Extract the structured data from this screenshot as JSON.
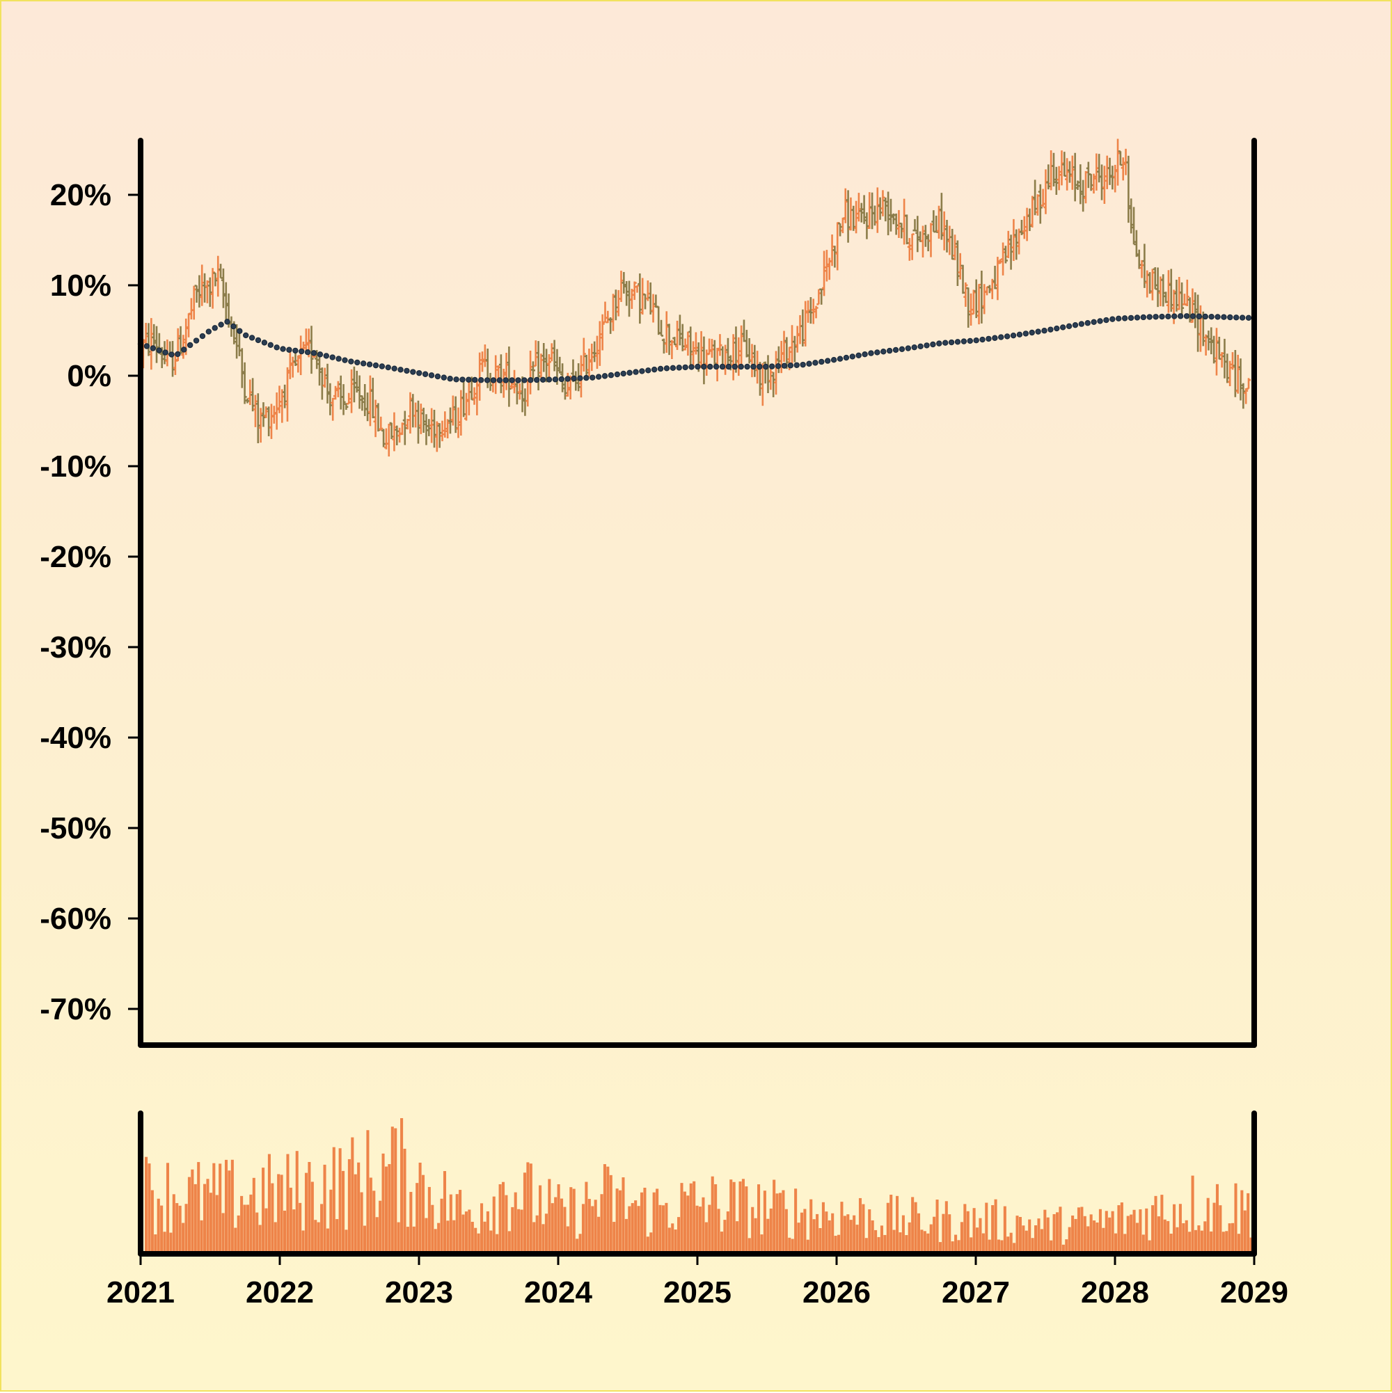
{
  "chart_data": [
    {
      "type": "ohlc",
      "title": "",
      "xlabel": "",
      "ylabel": "",
      "y_tick_labels": [
        "20%",
        "10%",
        "0%",
        "-10%",
        "-20%",
        "-30%",
        "-40%",
        "-50%",
        "-60%",
        "-70%"
      ],
      "y_tick_values": [
        20,
        10,
        0,
        -10,
        -20,
        -30,
        -40,
        -50,
        -60,
        -70
      ],
      "ylim": [
        -74,
        26
      ],
      "xlim": [
        2021,
        2029
      ],
      "grid": false,
      "colors": {
        "up": "#ee8449",
        "down": "#8c7d4a",
        "moving_average": "#1b2a3a"
      },
      "price_path": [
        [
          2021.0,
          3
        ],
        [
          2021.1,
          4
        ],
        [
          2021.2,
          1
        ],
        [
          2021.3,
          4
        ],
        [
          2021.4,
          9
        ],
        [
          2021.5,
          10
        ],
        [
          2021.55,
          11
        ],
        [
          2021.65,
          6
        ],
        [
          2021.75,
          -1
        ],
        [
          2021.85,
          -5
        ],
        [
          2021.95,
          -4
        ],
        [
          2022.05,
          -1
        ],
        [
          2022.15,
          2
        ],
        [
          2022.25,
          3
        ],
        [
          2022.35,
          -2
        ],
        [
          2022.45,
          -3
        ],
        [
          2022.55,
          -2
        ],
        [
          2022.65,
          -3
        ],
        [
          2022.75,
          -7
        ],
        [
          2022.85,
          -6
        ],
        [
          2022.95,
          -3
        ],
        [
          2023.05,
          -6
        ],
        [
          2023.15,
          -5
        ],
        [
          2023.25,
          -5
        ],
        [
          2023.35,
          -2
        ],
        [
          2023.45,
          1
        ],
        [
          2023.55,
          0
        ],
        [
          2023.65,
          0
        ],
        [
          2023.75,
          -2
        ],
        [
          2023.85,
          1
        ],
        [
          2023.95,
          2
        ],
        [
          2024.05,
          -2
        ],
        [
          2024.15,
          0
        ],
        [
          2024.25,
          3
        ],
        [
          2024.35,
          6
        ],
        [
          2024.45,
          10
        ],
        [
          2024.55,
          9
        ],
        [
          2024.65,
          8
        ],
        [
          2024.75,
          5
        ],
        [
          2024.85,
          4
        ],
        [
          2024.95,
          3
        ],
        [
          2025.05,
          2
        ],
        [
          2025.15,
          2
        ],
        [
          2025.25,
          3
        ],
        [
          2025.35,
          3
        ],
        [
          2025.45,
          0
        ],
        [
          2025.55,
          1
        ],
        [
          2025.65,
          3
        ],
        [
          2025.75,
          5
        ],
        [
          2025.85,
          8
        ],
        [
          2025.95,
          13
        ],
        [
          2026.05,
          18
        ],
        [
          2026.15,
          17
        ],
        [
          2026.25,
          18
        ],
        [
          2026.35,
          19
        ],
        [
          2026.45,
          17
        ],
        [
          2026.55,
          15
        ],
        [
          2026.65,
          16
        ],
        [
          2026.75,
          17
        ],
        [
          2026.85,
          13
        ],
        [
          2026.95,
          8
        ],
        [
          2027.05,
          9
        ],
        [
          2027.15,
          11
        ],
        [
          2027.25,
          14
        ],
        [
          2027.35,
          17
        ],
        [
          2027.45,
          19
        ],
        [
          2027.55,
          23
        ],
        [
          2027.65,
          22
        ],
        [
          2027.75,
          21
        ],
        [
          2027.85,
          22
        ],
        [
          2027.95,
          22
        ],
        [
          2028.05,
          24
        ],
        [
          2028.09,
          25
        ],
        [
          2028.1,
          17
        ],
        [
          2028.2,
          11
        ],
        [
          2028.3,
          10
        ],
        [
          2028.4,
          9
        ],
        [
          2028.5,
          8
        ],
        [
          2028.6,
          6
        ],
        [
          2028.7,
          3
        ],
        [
          2028.8,
          1
        ],
        [
          2028.9,
          -1
        ],
        [
          2028.95,
          0
        ]
      ],
      "moving_average": [
        [
          2021.0,
          3.5
        ],
        [
          2021.25,
          2.2
        ],
        [
          2021.5,
          5.0
        ],
        [
          2021.62,
          6.0
        ],
        [
          2021.75,
          4.5
        ],
        [
          2022.0,
          3.0
        ],
        [
          2022.25,
          2.5
        ],
        [
          2022.5,
          1.6
        ],
        [
          2022.75,
          1.0
        ],
        [
          2023.0,
          0.3
        ],
        [
          2023.25,
          -0.4
        ],
        [
          2023.5,
          -0.5
        ],
        [
          2023.75,
          -0.5
        ],
        [
          2024.0,
          -0.4
        ],
        [
          2024.25,
          -0.2
        ],
        [
          2024.5,
          0.3
        ],
        [
          2024.75,
          0.8
        ],
        [
          2025.0,
          1.0
        ],
        [
          2025.25,
          1.0
        ],
        [
          2025.5,
          1.0
        ],
        [
          2025.75,
          1.2
        ],
        [
          2026.0,
          1.8
        ],
        [
          2026.25,
          2.5
        ],
        [
          2026.5,
          3.0
        ],
        [
          2026.75,
          3.6
        ],
        [
          2027.0,
          3.9
        ],
        [
          2027.25,
          4.4
        ],
        [
          2027.5,
          5.0
        ],
        [
          2027.75,
          5.7
        ],
        [
          2028.0,
          6.3
        ],
        [
          2028.25,
          6.5
        ],
        [
          2028.5,
          6.6
        ],
        [
          2028.75,
          6.5
        ],
        [
          2028.95,
          6.4
        ]
      ]
    },
    {
      "type": "bar",
      "title": "",
      "xlabel": "",
      "ylabel": "",
      "x_tick_labels": [
        "2021",
        "2022",
        "2023",
        "2024",
        "2025",
        "2026",
        "2027",
        "2028",
        "2029"
      ],
      "x_tick_values": [
        2021,
        2022,
        2023,
        2024,
        2025,
        2026,
        2027,
        2028,
        2029
      ],
      "xlim": [
        2021,
        2029
      ],
      "ylim": [
        0,
        1
      ],
      "bar_color": "#ee8449",
      "volume_envelope": [
        [
          2021.0,
          0.55
        ],
        [
          2021.5,
          0.5
        ],
        [
          2022.0,
          0.55
        ],
        [
          2022.5,
          0.65
        ],
        [
          2022.8,
          0.75
        ],
        [
          2023.0,
          0.6
        ],
        [
          2023.3,
          0.35
        ],
        [
          2023.6,
          0.6
        ],
        [
          2024.0,
          0.35
        ],
        [
          2024.3,
          0.5
        ],
        [
          2024.6,
          0.4
        ],
        [
          2025.0,
          0.45
        ],
        [
          2025.5,
          0.4
        ],
        [
          2026.0,
          0.35
        ],
        [
          2026.5,
          0.3
        ],
        [
          2027.0,
          0.3
        ],
        [
          2027.5,
          0.25
        ],
        [
          2028.0,
          0.3
        ],
        [
          2028.5,
          0.45
        ],
        [
          2028.95,
          0.4
        ]
      ]
    }
  ]
}
